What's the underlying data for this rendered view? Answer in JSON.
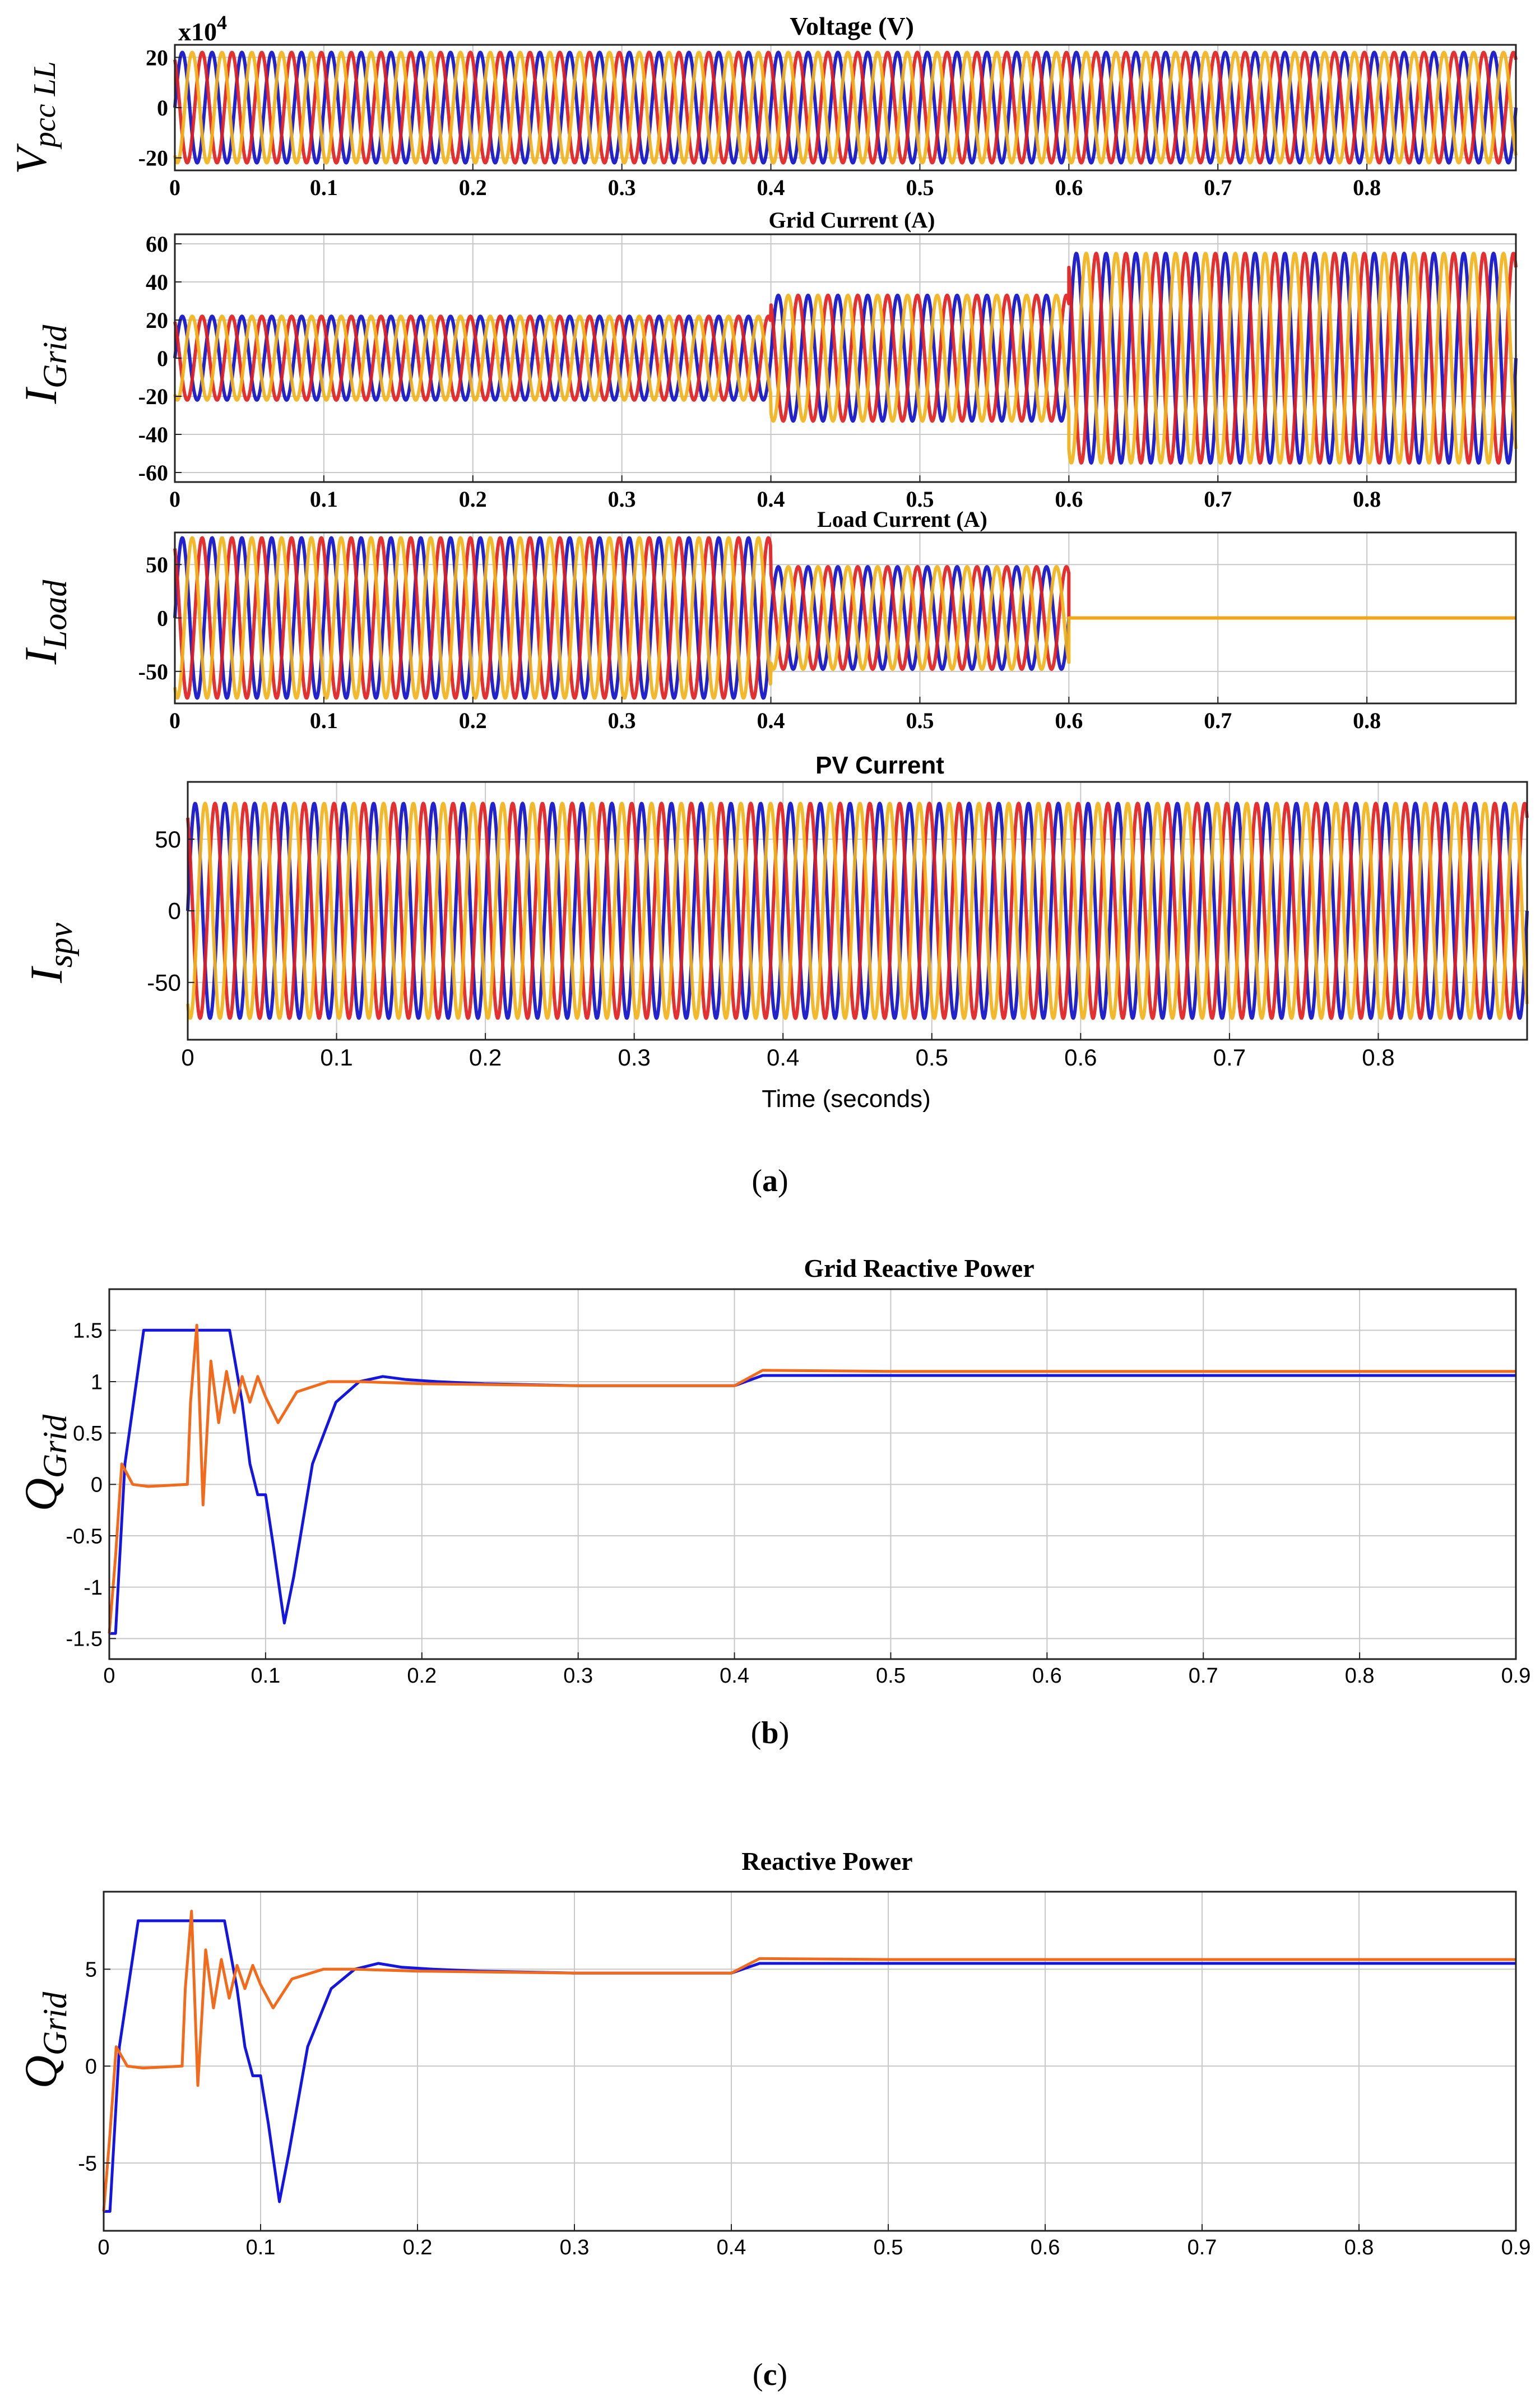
{
  "panels": [
    {
      "caption_letter": "a",
      "chart_data": [
        {
          "type": "line",
          "title": "Voltage (V)",
          "ylabel_main": "V",
          "ylabel_sub": "pcc LL",
          "exponent_base": "x10",
          "exponent_power": "4",
          "xlim": [
            0,
            0.9
          ],
          "ylim": [
            -25,
            25
          ],
          "yticks": [
            -20,
            0,
            20
          ],
          "yticklabels": [
            "-20",
            "0",
            "20"
          ],
          "xticks": [
            0,
            0.1,
            0.2,
            0.3,
            0.4,
            0.5,
            0.6,
            0.7,
            0.8
          ],
          "xticklabels": [
            "0",
            "0.1",
            "0.2",
            "0.3",
            "0.4",
            "0.5",
            "0.6",
            "0.7",
            "0.8"
          ],
          "grid": true,
          "series": [
            {
              "phase_offset_deg": 0,
              "color": "#1010c8"
            },
            {
              "phase_offset_deg": 120,
              "color": "#e0201e"
            },
            {
              "phase_offset_deg": 240,
              "color": "#f2b31a"
            }
          ],
          "segments": [
            {
              "x0": 0,
              "x1": 0.9,
              "amplitude": 22
            }
          ],
          "frequency_hz": 50
        },
        {
          "type": "line",
          "title": "Grid Current (A)",
          "ylabel_main": "I",
          "ylabel_sub": "Grid",
          "xlim": [
            0,
            0.9
          ],
          "ylim": [
            -65,
            65
          ],
          "yticks": [
            -60,
            -40,
            -20,
            0,
            20,
            40,
            60
          ],
          "yticklabels": [
            "-60",
            "-40",
            "-20",
            "0",
            "20",
            "40",
            "60"
          ],
          "xticks": [
            0,
            0.1,
            0.2,
            0.3,
            0.4,
            0.5,
            0.6,
            0.7,
            0.8
          ],
          "xticklabels": [
            "0",
            "0.1",
            "0.2",
            "0.3",
            "0.4",
            "0.5",
            "0.6",
            "0.7",
            "0.8"
          ],
          "grid": true,
          "series": [
            {
              "phase_offset_deg": 0,
              "color": "#1010c8"
            },
            {
              "phase_offset_deg": 120,
              "color": "#e0201e"
            },
            {
              "phase_offset_deg": 240,
              "color": "#f2b31a"
            }
          ],
          "segments": [
            {
              "x0": 0,
              "x1": 0.4,
              "amplitude": 22
            },
            {
              "x0": 0.4,
              "x1": 0.6,
              "amplitude": 33
            },
            {
              "x0": 0.6,
              "x1": 0.9,
              "amplitude": 55
            }
          ],
          "frequency_hz": 50
        },
        {
          "type": "line",
          "title": "Load Current (A)",
          "ylabel_main": "I",
          "ylabel_sub": "Load",
          "xlim": [
            0,
            0.9
          ],
          "ylim": [
            -80,
            80
          ],
          "yticks": [
            -50,
            0,
            50
          ],
          "yticklabels": [
            "-50",
            "0",
            "50"
          ],
          "xticks": [
            0,
            0.1,
            0.2,
            0.3,
            0.4,
            0.5,
            0.6,
            0.7,
            0.8
          ],
          "xticklabels": [
            "0",
            "0.1",
            "0.2",
            "0.3",
            "0.4",
            "0.5",
            "0.6",
            "0.7",
            "0.8"
          ],
          "grid": true,
          "series": [
            {
              "phase_offset_deg": 0,
              "color": "#1010c8"
            },
            {
              "phase_offset_deg": 120,
              "color": "#e0201e"
            },
            {
              "phase_offset_deg": 240,
              "color": "#f2b31a"
            }
          ],
          "segments": [
            {
              "x0": 0,
              "x1": 0.4,
              "amplitude": 75
            },
            {
              "x0": 0.4,
              "x1": 0.6,
              "amplitude": 48
            },
            {
              "x0": 0.6,
              "x1": 0.9,
              "amplitude": 0
            }
          ],
          "frequency_hz": 50
        },
        {
          "type": "line",
          "title": "PV Current",
          "ylabel_main": "I",
          "ylabel_sub": "spv",
          "xlabel": "Time (seconds)",
          "xlim": [
            0,
            0.9
          ],
          "ylim": [
            -90,
            90
          ],
          "yticks": [
            -50,
            0,
            50
          ],
          "yticklabels": [
            "-50",
            "0",
            "50"
          ],
          "xticks": [
            0,
            0.1,
            0.2,
            0.3,
            0.4,
            0.5,
            0.6,
            0.7,
            0.8
          ],
          "xticklabels": [
            "0",
            "0.1",
            "0.2",
            "0.3",
            "0.4",
            "0.5",
            "0.6",
            "0.7",
            "0.8"
          ],
          "grid": true,
          "series": [
            {
              "phase_offset_deg": 0,
              "color": "#1010c8"
            },
            {
              "phase_offset_deg": 120,
              "color": "#e0201e"
            },
            {
              "phase_offset_deg": 240,
              "color": "#f2b31a"
            }
          ],
          "segments": [
            {
              "x0": 0,
              "x1": 0.9,
              "amplitude": 75
            }
          ],
          "frequency_hz": 50
        }
      ]
    },
    {
      "caption_letter": "b",
      "chart_data": {
        "type": "line",
        "title": "Grid Reactive Power",
        "ylabel_main": "Q",
        "ylabel_sub": "Grid",
        "xlim": [
          0,
          0.9
        ],
        "ylim": [
          -1.7,
          1.9
        ],
        "yticks": [
          -1.5,
          -1,
          -0.5,
          0,
          0.5,
          1,
          1.5
        ],
        "yticklabels": [
          "-1.5",
          "-1",
          "-0.5",
          "0",
          "0.5",
          "1",
          "1.5"
        ],
        "xticks": [
          0,
          0.1,
          0.2,
          0.3,
          0.4,
          0.5,
          0.6,
          0.7,
          0.8,
          0.9
        ],
        "xticklabels": [
          "0",
          "0.1",
          "0.2",
          "0.3",
          "0.4",
          "0.5",
          "0.6",
          "0.7",
          "0.8",
          "0.9"
        ],
        "grid": true,
        "series": [
          {
            "color": "#1515e0",
            "x": [
              0,
              0.004,
              0.01,
              0.022,
              0.03,
              0.05,
              0.077,
              0.085,
              0.09,
              0.095,
              0.1,
              0.105,
              0.112,
              0.118,
              0.13,
              0.145,
              0.16,
              0.175,
              0.19,
              0.21,
              0.24,
              0.3,
              0.4,
              0.418,
              0.5,
              0.6,
              0.7,
              0.8,
              0.9
            ],
            "y": [
              -1.45,
              -1.45,
              0.2,
              1.5,
              1.5,
              1.5,
              1.5,
              0.8,
              0.2,
              -0.1,
              -0.1,
              -0.6,
              -1.35,
              -0.9,
              0.2,
              0.8,
              1.0,
              1.05,
              1.02,
              1.0,
              0.98,
              0.96,
              0.96,
              1.06,
              1.06,
              1.06,
              1.06,
              1.06,
              1.06
            ]
          },
          {
            "color": "#f26a1b",
            "x": [
              0,
              0.004,
              0.008,
              0.015,
              0.025,
              0.05,
              0.052,
              0.056,
              0.06,
              0.065,
              0.07,
              0.075,
              0.08,
              0.085,
              0.09,
              0.095,
              0.1,
              0.108,
              0.12,
              0.14,
              0.16,
              0.2,
              0.3,
              0.4,
              0.418,
              0.5,
              0.6,
              0.7,
              0.8,
              0.9
            ],
            "y": [
              -1.45,
              -0.7,
              0.2,
              0.0,
              -0.02,
              0.0,
              0.8,
              1.55,
              -0.2,
              1.2,
              0.6,
              1.1,
              0.7,
              1.05,
              0.8,
              1.05,
              0.85,
              0.6,
              0.9,
              1.0,
              1.0,
              0.98,
              0.96,
              0.96,
              1.11,
              1.1,
              1.1,
              1.1,
              1.1,
              1.1
            ]
          }
        ]
      }
    },
    {
      "caption_letter": "c",
      "chart_data": {
        "type": "line",
        "title": "Reactive Power",
        "ylabel_main": "Q",
        "ylabel_sub": "Grid",
        "xlim": [
          0,
          0.9
        ],
        "ylim": [
          -8.5,
          9
        ],
        "yticks": [
          -5,
          0,
          5
        ],
        "yticklabels": [
          "-5",
          "0",
          "5"
        ],
        "xticks": [
          0,
          0.1,
          0.2,
          0.3,
          0.4,
          0.5,
          0.6,
          0.7,
          0.8,
          0.9
        ],
        "xticklabels": [
          "0",
          "0.1",
          "0.2",
          "0.3",
          "0.4",
          "0.5",
          "0.6",
          "0.7",
          "0.8",
          "0.9"
        ],
        "grid": true,
        "series": [
          {
            "color": "#1515e0",
            "x": [
              0,
              0.004,
              0.01,
              0.022,
              0.03,
              0.05,
              0.077,
              0.085,
              0.09,
              0.095,
              0.1,
              0.105,
              0.112,
              0.118,
              0.13,
              0.145,
              0.16,
              0.175,
              0.19,
              0.21,
              0.24,
              0.3,
              0.4,
              0.418,
              0.5,
              0.6,
              0.7,
              0.8,
              0.9
            ],
            "y": [
              -7.5,
              -7.5,
              1.0,
              7.5,
              7.5,
              7.5,
              7.5,
              4.0,
              1.0,
              -0.5,
              -0.5,
              -3.0,
              -7.0,
              -4.5,
              1.0,
              4.0,
              5.0,
              5.3,
              5.1,
              5.0,
              4.9,
              4.8,
              4.8,
              5.3,
              5.3,
              5.3,
              5.3,
              5.3,
              5.3
            ]
          },
          {
            "color": "#f26a1b",
            "x": [
              0,
              0.004,
              0.008,
              0.015,
              0.025,
              0.05,
              0.052,
              0.056,
              0.06,
              0.065,
              0.07,
              0.075,
              0.08,
              0.085,
              0.09,
              0.095,
              0.1,
              0.108,
              0.12,
              0.14,
              0.16,
              0.2,
              0.3,
              0.4,
              0.418,
              0.5,
              0.6,
              0.7,
              0.8,
              0.9
            ],
            "y": [
              -7.5,
              -3.5,
              1.0,
              0.0,
              -0.1,
              0.0,
              4.0,
              8.0,
              -1.0,
              6.0,
              3.0,
              5.5,
              3.5,
              5.2,
              4.0,
              5.2,
              4.2,
              3.0,
              4.5,
              5.0,
              5.0,
              4.9,
              4.8,
              4.8,
              5.55,
              5.5,
              5.5,
              5.5,
              5.5,
              5.5
            ]
          }
        ]
      }
    }
  ]
}
